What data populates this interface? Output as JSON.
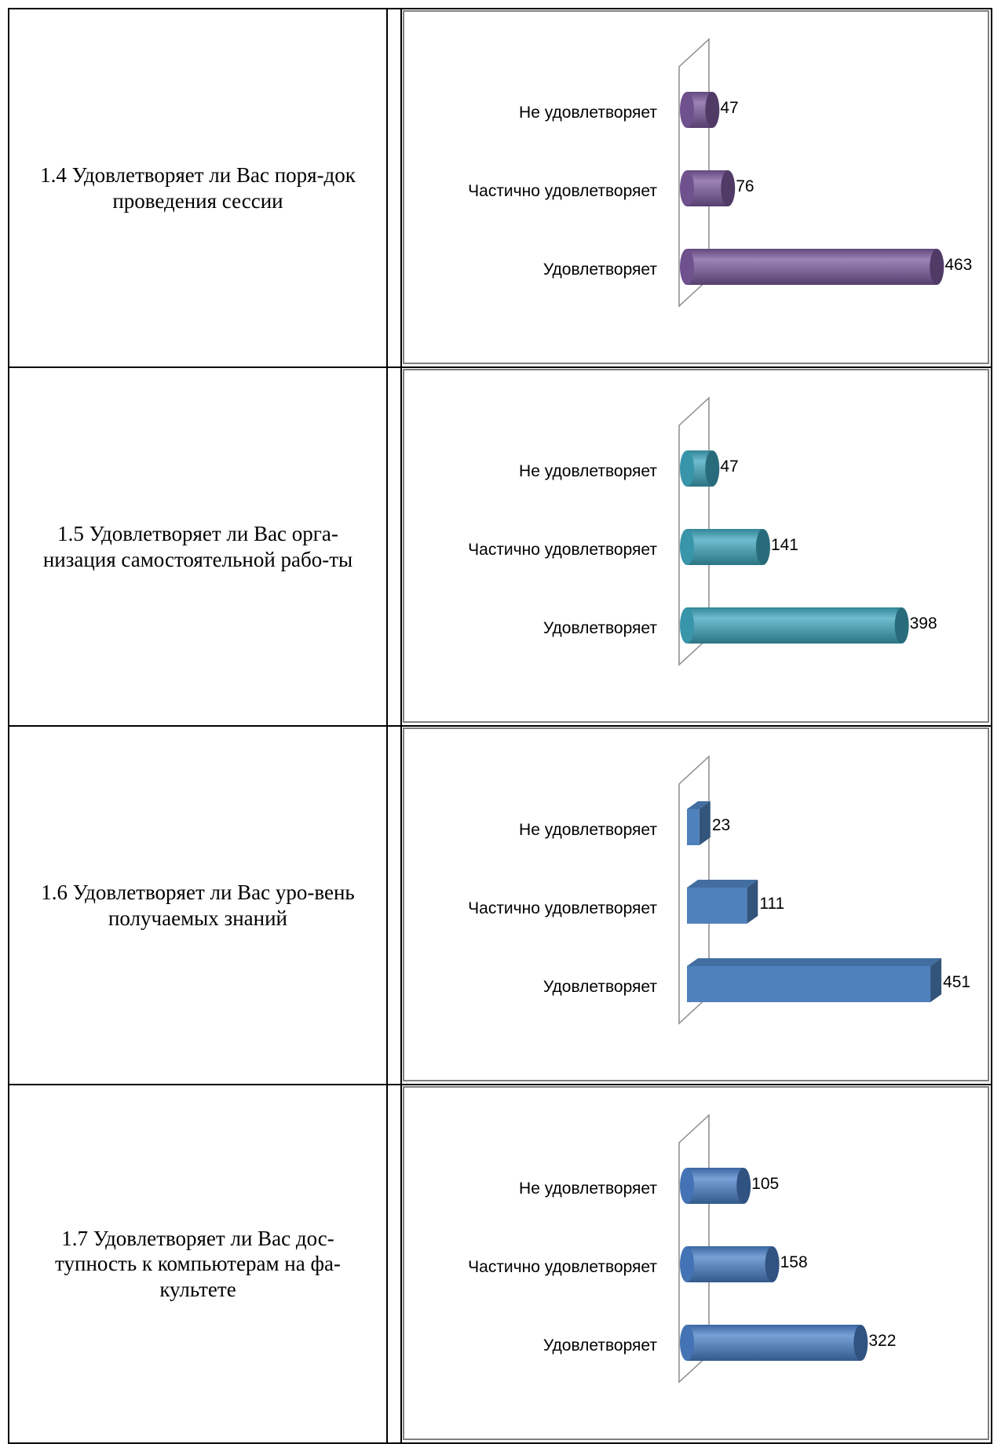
{
  "chart_data": [
    {
      "type": "bar",
      "title": "1.4 Удовлетворяет ли Вас порядок проведения сессии",
      "categories": [
        "Не удовлетворяет",
        "Частично удовлетворяет",
        "Удовлетворяет"
      ],
      "values": [
        47,
        76,
        463
      ],
      "color": "#7b5a9e",
      "shape": "cylinder"
    },
    {
      "type": "bar",
      "title": "1.5 Удовлетворяет ли Вас организация самостоятельной работы",
      "categories": [
        "Не удовлетворяет",
        "Частично удовлетворяет",
        "Удовлетворяет"
      ],
      "values": [
        47,
        141,
        398
      ],
      "color": "#3ea6bd",
      "shape": "cylinder"
    },
    {
      "type": "bar",
      "title": "1.6 Удовлетворяет ли Вас уровень получаемых знаний",
      "categories": [
        "Не удовлетворяет",
        "Частично удовлетворяет",
        "Удовлетворяет"
      ],
      "values": [
        23,
        111,
        451
      ],
      "color": "#4f81bd",
      "shape": "box"
    },
    {
      "type": "bar",
      "title": "1.7 Удовлетворяет ли Вас доступность к компьютерам на факультете",
      "categories": [
        "Не удовлетворяет",
        "Частично удовлетворяет",
        "Удовлетворяет"
      ],
      "values": [
        105,
        158,
        322
      ],
      "color": "#4a80c8",
      "shape": "cylinder"
    }
  ],
  "rows": [
    {
      "question": "1.4 Удовлетворяет ли Вас поря-док проведения сессии"
    },
    {
      "question": "1.5 Удовлетворяет ли Вас орга-низация самостоятельной рабо-ты"
    },
    {
      "question": "1.6 Удовлетворяет ли Вас уро-вень получаемых знаний"
    },
    {
      "question": "1.7 Удовлетворяет ли Вас дос-тупность к компьютерам на фа-культете"
    }
  ]
}
